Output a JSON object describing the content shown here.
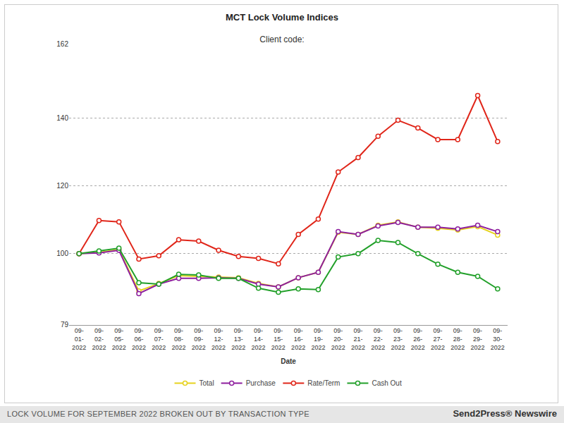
{
  "chart_data": {
    "type": "line",
    "title": "MCT Lock Volume Indices",
    "subtitle": "Client code:",
    "x_label": "Date",
    "categories": [
      "09-01-2022",
      "09-02-2022",
      "09-05-2022",
      "09-06-2022",
      "09-07-2022",
      "09-08-2022",
      "09-09-2022",
      "09-12-2022",
      "09-13-2022",
      "09-14-2022",
      "09-15-2022",
      "09-16-2022",
      "09-19-2022",
      "09-20-2022",
      "09-21-2022",
      "09-22-2022",
      "09-23-2022",
      "09-26-2022",
      "09-27-2022",
      "09-28-2022",
      "09-29-2022",
      "09-30-2022"
    ],
    "series": [
      {
        "name": "Total",
        "color": "#e6d21e",
        "values": [
          100,
          100.4,
          101.2,
          89.0,
          91.2,
          93.5,
          93.3,
          93.1,
          92.9,
          91.2,
          90.2,
          92.9,
          94.5,
          106.3,
          105.7,
          108.4,
          109.4,
          107.8,
          107.5,
          107.0,
          108.0,
          105.5
        ]
      },
      {
        "name": "Purchase",
        "color": "#8e1f9e",
        "values": [
          100,
          100.2,
          101.0,
          88.2,
          91.0,
          92.7,
          92.7,
          92.9,
          92.7,
          91.0,
          90.2,
          92.9,
          94.5,
          106.5,
          105.7,
          108.2,
          109.2,
          107.8,
          107.8,
          107.3,
          108.4,
          106.5
        ]
      },
      {
        "name": "Rate/Term",
        "color": "#e0261a",
        "values": [
          100,
          109.8,
          109.4,
          98.4,
          99.4,
          104.1,
          103.7,
          101.0,
          99.2,
          98.6,
          97.0,
          105.7,
          110.2,
          124.1,
          128.4,
          134.7,
          139.4,
          137.1,
          133.7,
          133.7,
          146.7,
          133.1
        ]
      },
      {
        "name": "Cash Out",
        "color": "#22a02a",
        "values": [
          100,
          100.8,
          101.6,
          91.4,
          91.0,
          93.9,
          93.7,
          92.7,
          92.7,
          89.8,
          88.6,
          89.6,
          89.4,
          99.0,
          100,
          103.9,
          103.3,
          100,
          96.9,
          94.5,
          93.3,
          89.6
        ]
      }
    ],
    "ylim": [
      79,
      162
    ],
    "yticks": [
      79,
      100,
      120,
      140,
      162
    ],
    "grid": true,
    "legend": "bottom",
    "marker": "circle",
    "annotations": [
      "LOCK VOLUME FOR SEPTEMBER 2022 BROKEN OUT BY TRANSACTION TYPE",
      "Send2Press® Newswire"
    ]
  }
}
